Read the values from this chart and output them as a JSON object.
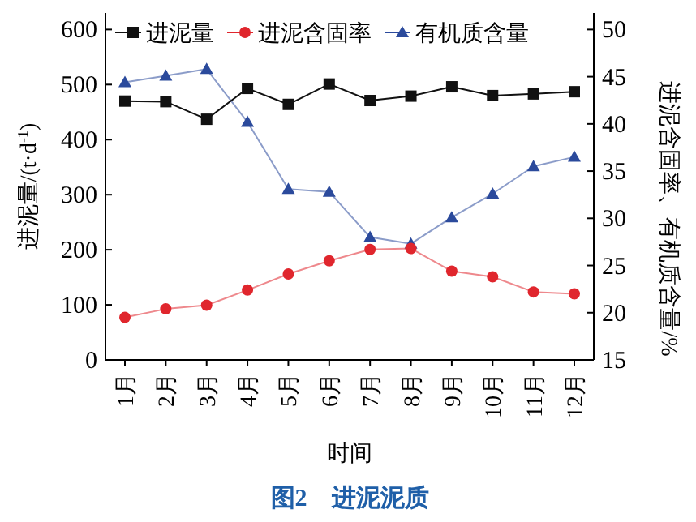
{
  "chart_data": {
    "type": "line",
    "title": "图2　进泥泥质",
    "xlabel": "时间",
    "ylabel": "进泥量/(t·d$^{-1}$)",
    "y2label": "进泥含固率、有机质含量/%",
    "categories": [
      "1月",
      "2月",
      "3月",
      "4月",
      "5月",
      "6月",
      "7月",
      "8月",
      "9月",
      "10月",
      "11月",
      "12月"
    ],
    "ylim": [
      0,
      630
    ],
    "yticks": [
      0,
      100,
      200,
      300,
      400,
      500,
      600
    ],
    "y2lim": [
      15,
      51.75
    ],
    "y2ticks": [
      15,
      20,
      25,
      30,
      35,
      40,
      45,
      50
    ],
    "legend": "top",
    "grid": false,
    "series": [
      {
        "name": "进泥量",
        "color": "#111111",
        "marker": "square",
        "values": [
          470,
          469,
          437,
          493,
          464,
          501,
          471,
          479,
          496,
          480,
          483,
          487
        ]
      },
      {
        "name": "进泥含固率",
        "color": "#e0262d",
        "marker": "circle",
        "axis": "y2",
        "values": [
          19.5,
          20.4,
          20.8,
          22.4,
          24.1,
          25.5,
          26.7,
          26.8,
          24.4,
          23.8,
          22.2,
          22.0
        ]
      },
      {
        "name": "有机质含量",
        "color": "#2b4a9c",
        "marker": "triangle",
        "axis": "y2",
        "values": [
          44.4,
          45.1,
          45.8,
          40.2,
          33.1,
          32.8,
          28.0,
          27.3,
          30.1,
          32.6,
          35.5,
          36.5
        ]
      }
    ]
  }
}
